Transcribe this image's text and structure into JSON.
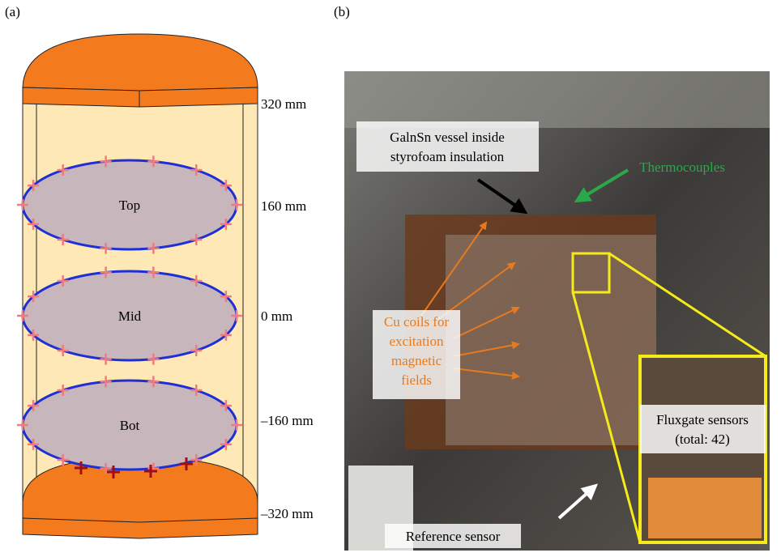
{
  "panel_a": {
    "label": "(a)",
    "rings": [
      "Top",
      "Mid",
      "Bot"
    ],
    "heights": [
      "320 mm",
      "160 mm",
      "0 mm",
      "–160 mm",
      "–320 mm"
    ]
  },
  "panel_b": {
    "label": "(b)",
    "annotations": {
      "vessel": [
        "GalnSn vessel inside",
        "styrofoam insulation"
      ],
      "thermocouples": "Thermocouples",
      "coils": [
        "Cu coils for",
        "excitation",
        "magnetic",
        "fields"
      ],
      "fluxgate": [
        "Fluxgate sensors",
        "(total: 42)"
      ],
      "reference": "Reference sensor"
    }
  }
}
